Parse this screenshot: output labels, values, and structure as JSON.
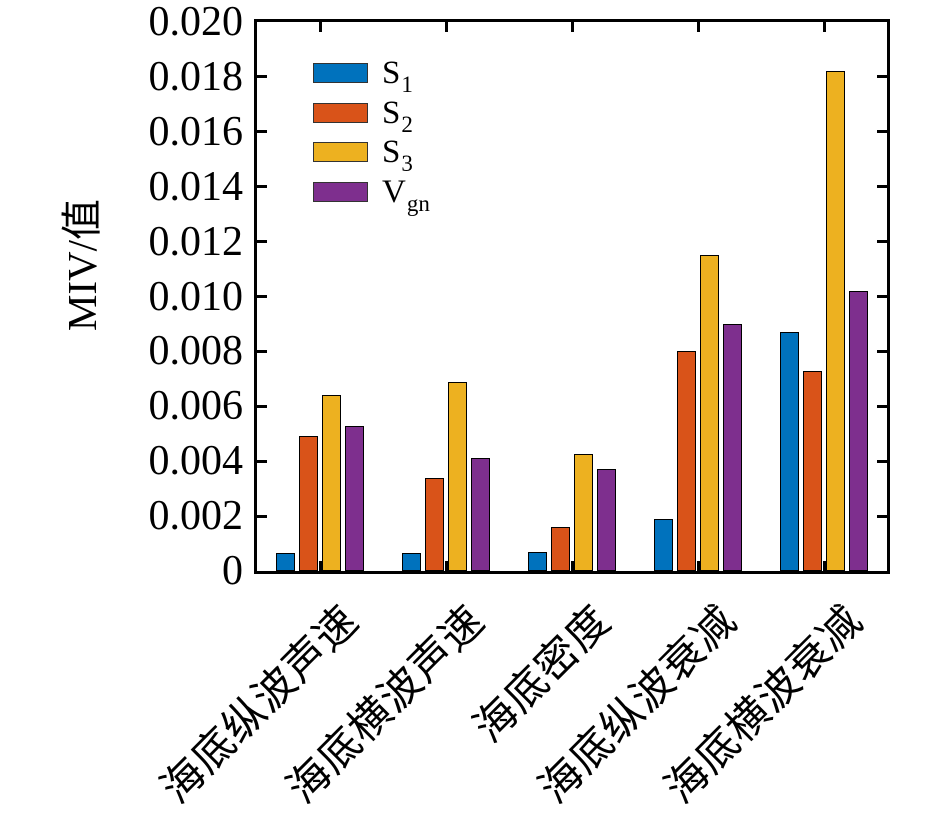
{
  "figure": {
    "background": "#ffffff",
    "axis_color": "#000000"
  },
  "chart_data": {
    "type": "bar",
    "title": "",
    "xlabel": "",
    "ylabel": "MIV/值",
    "ylim": [
      0,
      0.02
    ],
    "ytick_step": 0.002,
    "ytick_labels": [
      "0",
      "0.002",
      "0.004",
      "0.006",
      "0.008",
      "0.010",
      "0.012",
      "0.014",
      "0.016",
      "0.018",
      "0.020"
    ],
    "grid": false,
    "legend_position": "upper-left-inside",
    "bar_edge_color": "#000000",
    "categories": [
      "海底纵波声速",
      "海底横波声速",
      "海底密度",
      "海底纵波衰减",
      "海底横波衰减"
    ],
    "series": [
      {
        "name": "S",
        "subscript": "1",
        "label": "S1",
        "color": "#0072BD",
        "values": [
          0.00065,
          0.00065,
          0.0007,
          0.0019,
          0.0087
        ]
      },
      {
        "name": "S",
        "subscript": "2",
        "label": "S2",
        "color": "#D95319",
        "values": [
          0.0049,
          0.0034,
          0.0016,
          0.008,
          0.0073
        ]
      },
      {
        "name": "S",
        "subscript": "3",
        "label": "S3",
        "color": "#EDB120",
        "values": [
          0.0064,
          0.0069,
          0.00425,
          0.0115,
          0.0182
        ]
      },
      {
        "name": "V",
        "subscript": "gn",
        "label": "Vgn",
        "color": "#7E2F8E",
        "values": [
          0.0053,
          0.0041,
          0.0037,
          0.009,
          0.0102
        ]
      }
    ]
  }
}
